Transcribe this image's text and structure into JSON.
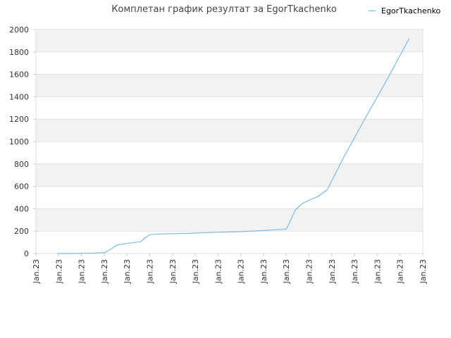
{
  "chart_data": {
    "type": "line",
    "title": "Комплетан график резултат за EgorTkachenko",
    "xlabel": "",
    "ylabel": "",
    "ylim": [
      0,
      2000
    ],
    "yticks": [
      0,
      200,
      400,
      600,
      800,
      1000,
      1200,
      1400,
      1600,
      1800,
      2000
    ],
    "x_tick_labels": [
      "Jan.23",
      "Jan.23",
      "Jan.23",
      "Jan.23",
      "Jan.23",
      "Jan.23",
      "Jan.23",
      "Jan.23",
      "Jan.23",
      "Jan.23",
      "Jan.23",
      "Jan.23",
      "Jan.23",
      "Jan.23",
      "Jan.23",
      "Jan.23",
      "Jan.23",
      "Jan.23"
    ],
    "xlim": [
      0,
      17
    ],
    "grid": true,
    "legend_position": "top-right",
    "series": [
      {
        "name": "EgorTkachenko",
        "color": "#7fb9e6",
        "x": [
          0.93,
          1.5,
          2.0,
          2.5,
          2.95,
          3.05,
          3.3,
          3.55,
          4.0,
          4.6,
          4.8,
          5.0,
          5.2,
          5.5,
          5.8,
          6.2,
          6.7,
          7.3,
          8.0,
          9.0,
          10.0,
          10.5,
          10.8,
          11.0,
          11.2,
          11.4,
          11.7,
          12.0,
          12.4,
          12.8,
          13.5,
          14.5,
          15.5,
          16.4
        ],
        "y": [
          0,
          0,
          2,
          3,
          8,
          10,
          40,
          75,
          90,
          105,
          140,
          168,
          172,
          174,
          176,
          178,
          180,
          185,
          190,
          195,
          205,
          212,
          215,
          218,
          300,
          390,
          445,
          475,
          510,
          570,
          850,
          1220,
          1580,
          1920
        ]
      }
    ]
  }
}
